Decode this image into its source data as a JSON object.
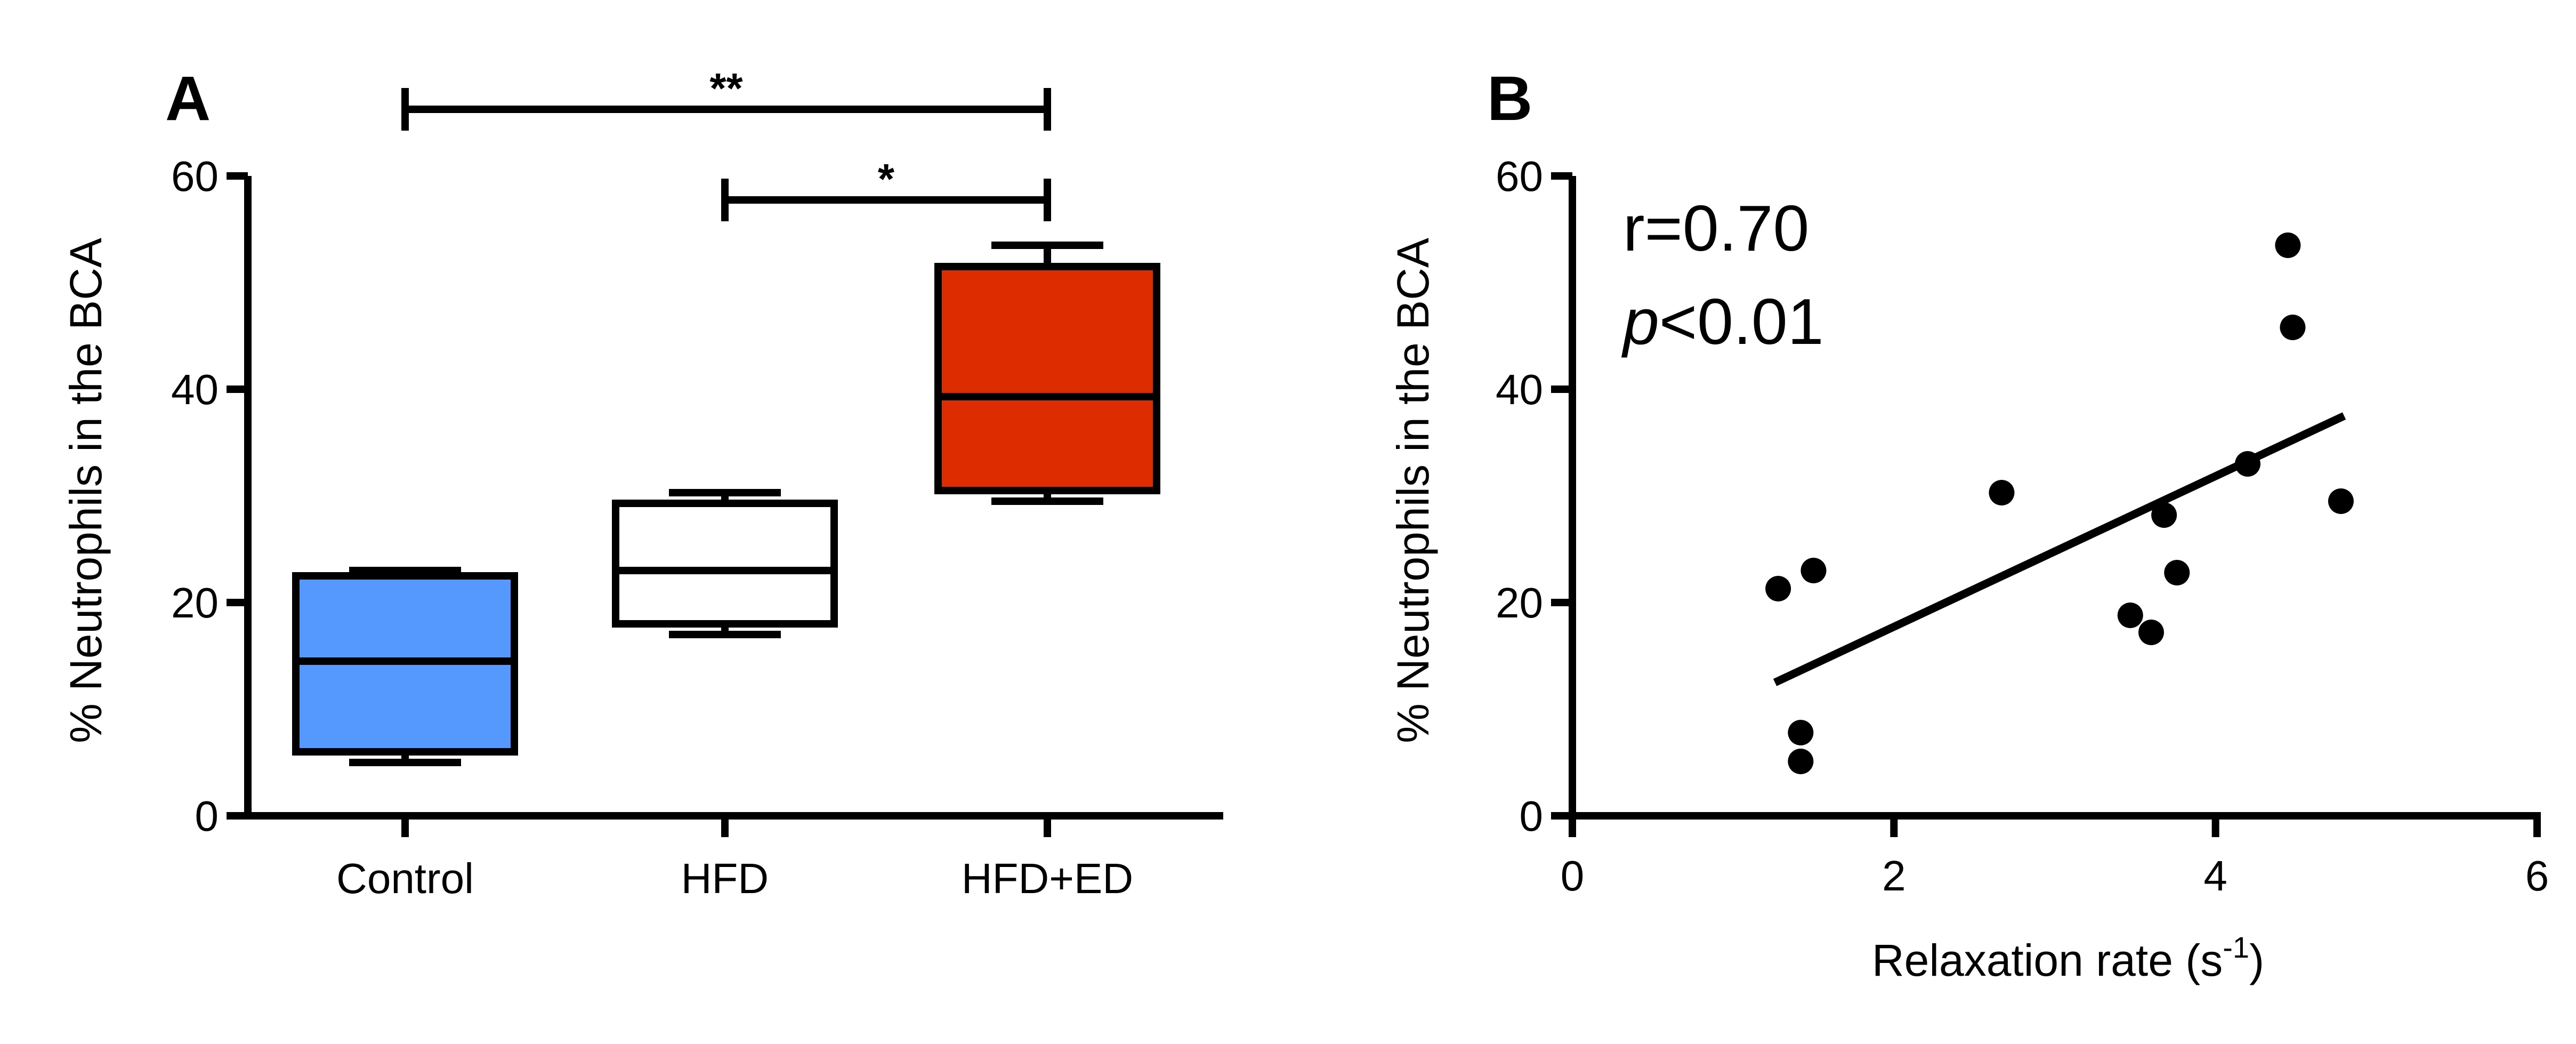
{
  "chart_data": [
    {
      "panel": "A",
      "type": "box",
      "ylabel": "% Neutrophils in the BCA",
      "ylim": [
        0,
        60
      ],
      "yticks": [
        0,
        20,
        40,
        60
      ],
      "categories": [
        "Control",
        "HFD",
        "HFD+ED"
      ],
      "boxes": [
        {
          "category": "Control",
          "min": 5,
          "q1": 6,
          "median": 14.5,
          "q3": 22.5,
          "max": 23,
          "color": "#5599ff"
        },
        {
          "category": "HFD",
          "min": 17,
          "q1": 18,
          "median": 23,
          "q3": 29.3,
          "max": 30.3,
          "color": "#ffffff"
        },
        {
          "category": "HFD+ED",
          "min": 29.5,
          "q1": 30.5,
          "median": 39.3,
          "q3": 51.5,
          "max": 53.5,
          "color": "#dd2c00"
        }
      ],
      "significance": [
        {
          "from": "Control",
          "to": "HFD+ED",
          "label": "**"
        },
        {
          "from": "HFD",
          "to": "HFD+ED",
          "label": "*"
        }
      ]
    },
    {
      "panel": "B",
      "type": "scatter",
      "xlabel": "Relaxation rate (s",
      "xlabel_sup": "-1",
      "xlabel_end": ")",
      "ylabel": "% Neutrophils in the BCA",
      "xlim": [
        0,
        6
      ],
      "ylim": [
        0,
        60
      ],
      "xticks": [
        0,
        2,
        4,
        6
      ],
      "yticks": [
        0,
        20,
        40,
        60
      ],
      "points": [
        {
          "x": 1.28,
          "y": 21.3
        },
        {
          "x": 1.5,
          "y": 23
        },
        {
          "x": 1.42,
          "y": 7.8
        },
        {
          "x": 1.42,
          "y": 5.1
        },
        {
          "x": 2.67,
          "y": 30.3
        },
        {
          "x": 3.47,
          "y": 18.8
        },
        {
          "x": 3.6,
          "y": 17.2
        },
        {
          "x": 3.68,
          "y": 28.2
        },
        {
          "x": 3.76,
          "y": 22.8
        },
        {
          "x": 4.2,
          "y": 33
        },
        {
          "x": 4.45,
          "y": 53.5
        },
        {
          "x": 4.48,
          "y": 45.8
        },
        {
          "x": 4.78,
          "y": 29.5
        }
      ],
      "fit_line": {
        "x": [
          1.26,
          4.8
        ],
        "y": [
          12.5,
          37.5
        ]
      },
      "annotation": {
        "r_text": "r=0.70",
        "p_italic": "p",
        "p_rest": "<0.01"
      }
    }
  ]
}
